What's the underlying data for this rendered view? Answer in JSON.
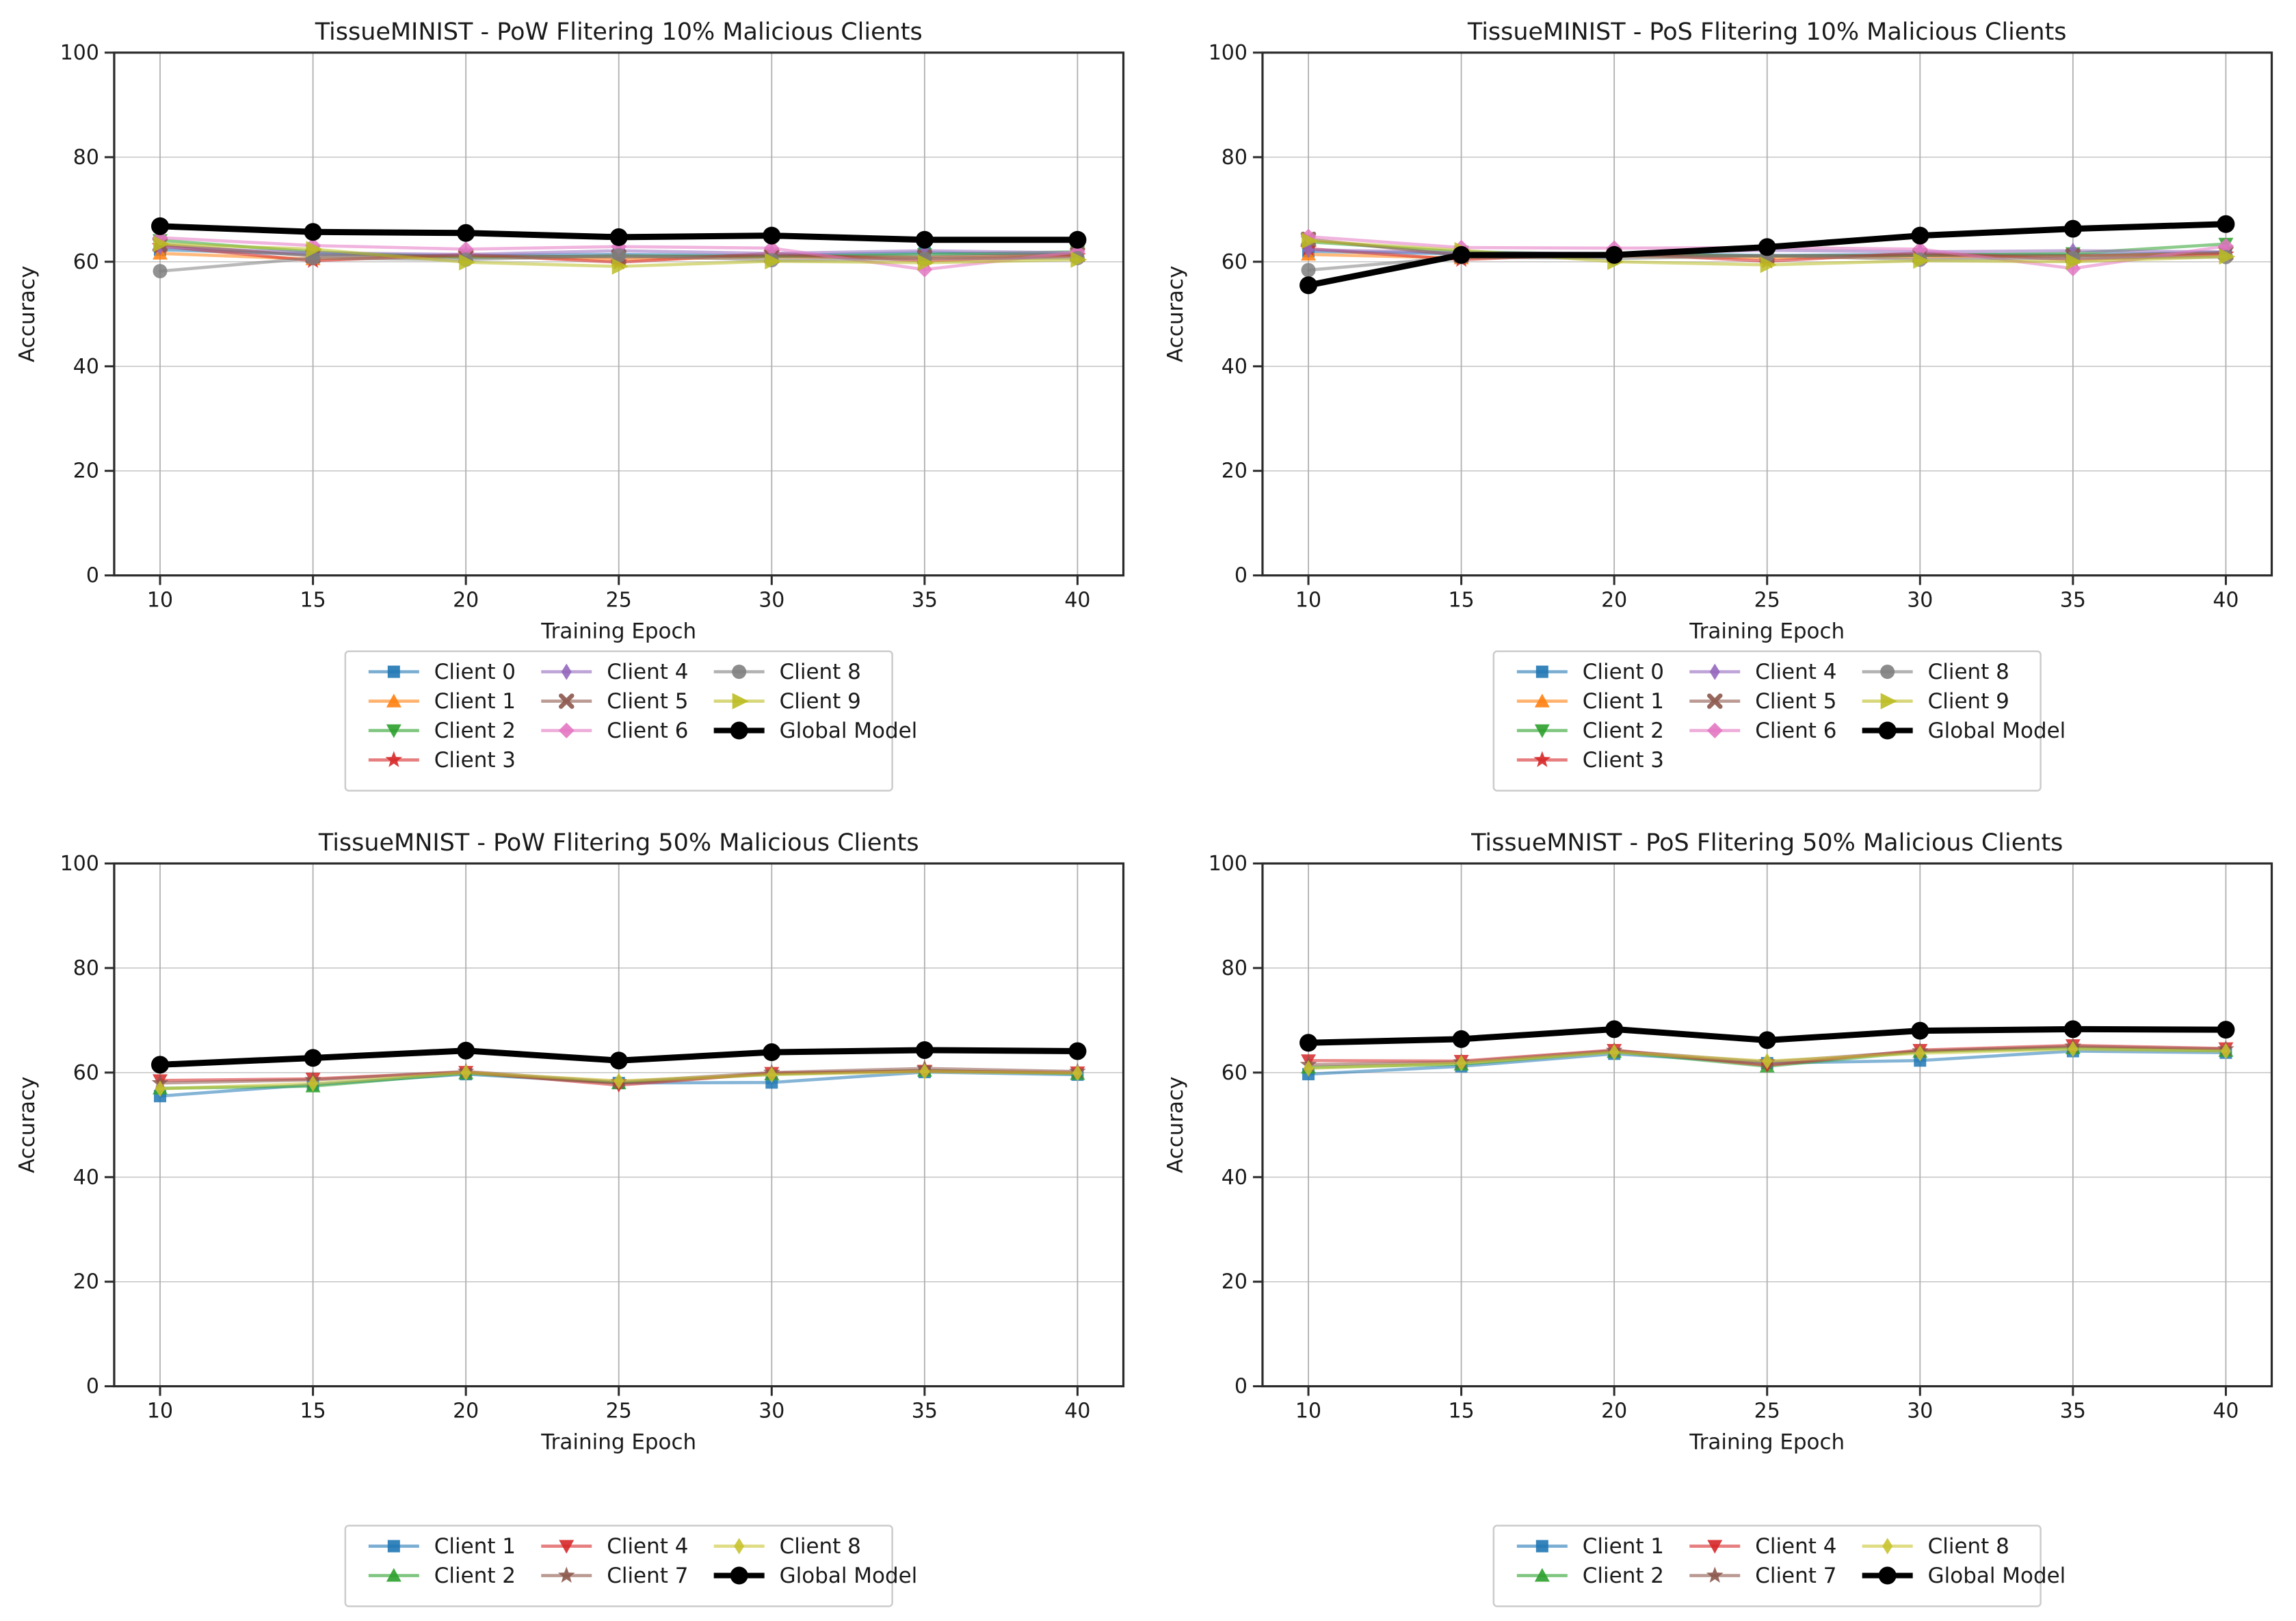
{
  "page": {
    "background": "#ffffff",
    "grid_color": "#b0b0b0",
    "spine_color": "#2b2b2b",
    "legend_border_color": "#cccccc"
  },
  "chart_data": [
    {
      "type": "line",
      "title": "TissueMINIST - PoW Flitering 10% Malicious Clients",
      "xlabel": "Training Epoch",
      "ylabel": "Accuracy",
      "x": [
        10,
        15,
        20,
        25,
        30,
        35,
        40
      ],
      "xticks": [
        10,
        15,
        20,
        25,
        30,
        35,
        40
      ],
      "yticks": [
        0,
        20,
        40,
        60,
        80,
        100
      ],
      "xlim": [
        8.5,
        41.5
      ],
      "ylim": [
        0,
        100
      ],
      "grid": true,
      "legend": {
        "position": "below-center",
        "ncol": 3,
        "border": true
      },
      "series": [
        {
          "name": "Client 0",
          "color": "#1f77b4",
          "marker": "square",
          "role": "client",
          "values": [
            62.3,
            61.4,
            61.2,
            61.4,
            61.2,
            61.7,
            61.4
          ]
        },
        {
          "name": "Client 1",
          "color": "#ff7f0e",
          "marker": "triangle_up",
          "role": "client",
          "values": [
            61.6,
            60.5,
            61.0,
            60.4,
            60.9,
            60.7,
            61.2
          ]
        },
        {
          "name": "Client 2",
          "color": "#2ca02c",
          "marker": "triangle_down",
          "role": "client",
          "values": [
            64.1,
            61.9,
            60.8,
            61.1,
            61.0,
            61.4,
            61.9
          ]
        },
        {
          "name": "Client 3",
          "color": "#d62728",
          "marker": "star",
          "role": "client",
          "values": [
            63.0,
            60.2,
            61.4,
            59.9,
            61.6,
            60.2,
            61.1
          ]
        },
        {
          "name": "Client 4",
          "color": "#9467bd",
          "marker": "thin_diamond",
          "role": "client",
          "values": [
            62.8,
            61.7,
            61.4,
            62.1,
            61.6,
            62.1,
            61.7
          ]
        },
        {
          "name": "Client 5",
          "color": "#8c564b",
          "marker": "x",
          "role": "client",
          "values": [
            63.3,
            61.1,
            61.1,
            60.9,
            61.1,
            60.9,
            61.4
          ]
        },
        {
          "name": "Client 6",
          "color": "#e377c2",
          "marker": "diamond",
          "role": "client",
          "values": [
            64.6,
            63.1,
            62.4,
            62.9,
            62.6,
            58.5,
            61.9
          ]
        },
        {
          "name": "Client 8",
          "color": "#7f7f7f",
          "marker": "circle",
          "role": "client",
          "values": [
            58.2,
            60.7,
            60.4,
            61.2,
            60.3,
            60.6,
            60.7
          ]
        },
        {
          "name": "Client 9",
          "color": "#bcbd22",
          "marker": "triangle_right",
          "role": "client",
          "values": [
            63.4,
            62.4,
            59.9,
            59.1,
            60.1,
            59.8,
            60.4
          ]
        },
        {
          "name": "Global Model",
          "color": "#000000",
          "marker": "circle",
          "role": "global",
          "values": [
            66.8,
            65.7,
            65.5,
            64.7,
            65.0,
            64.2,
            64.2
          ]
        }
      ]
    },
    {
      "type": "line",
      "title": "TissueMINIST - PoS Flitering 10% Malicious Clients",
      "xlabel": "Training Epoch",
      "ylabel": "Accuracy",
      "x": [
        10,
        15,
        20,
        25,
        30,
        35,
        40
      ],
      "xticks": [
        10,
        15,
        20,
        25,
        30,
        35,
        40
      ],
      "yticks": [
        0,
        20,
        40,
        60,
        80,
        100
      ],
      "xlim": [
        8.5,
        41.5
      ],
      "ylim": [
        0,
        100
      ],
      "grid": true,
      "legend": {
        "position": "below-center",
        "ncol": 3,
        "border": true
      },
      "series": [
        {
          "name": "Client 0",
          "color": "#1f77b4",
          "marker": "square",
          "role": "client",
          "values": [
            62.0,
            61.5,
            61.6,
            61.2,
            61.4,
            61.3,
            61.8
          ]
        },
        {
          "name": "Client 1",
          "color": "#ff7f0e",
          "marker": "triangle_up",
          "role": "client",
          "values": [
            61.4,
            60.7,
            61.1,
            60.7,
            60.9,
            61.1,
            61.6
          ]
        },
        {
          "name": "Client 2",
          "color": "#2ca02c",
          "marker": "triangle_down",
          "role": "client",
          "values": [
            63.8,
            61.9,
            61.4,
            61.1,
            61.2,
            61.6,
            63.4
          ]
        },
        {
          "name": "Client 3",
          "color": "#d62728",
          "marker": "star",
          "role": "client",
          "values": [
            62.5,
            60.4,
            61.6,
            60.1,
            61.7,
            60.4,
            61.4
          ]
        },
        {
          "name": "Client 4",
          "color": "#9467bd",
          "marker": "thin_diamond",
          "role": "client",
          "values": [
            62.3,
            61.7,
            61.6,
            62.2,
            61.9,
            62.1,
            61.9
          ]
        },
        {
          "name": "Client 5",
          "color": "#8c564b",
          "marker": "x",
          "role": "client",
          "values": [
            64.3,
            61.2,
            61.2,
            61.1,
            61.2,
            61.1,
            61.7
          ]
        },
        {
          "name": "Client 6",
          "color": "#e377c2",
          "marker": "diamond",
          "role": "client",
          "values": [
            64.8,
            62.7,
            62.6,
            62.7,
            62.4,
            58.7,
            63.0
          ]
        },
        {
          "name": "Client 8",
          "color": "#7f7f7f",
          "marker": "circle",
          "role": "client",
          "values": [
            58.4,
            60.9,
            60.6,
            61.2,
            60.4,
            60.7,
            60.9
          ]
        },
        {
          "name": "Client 9",
          "color": "#bcbd22",
          "marker": "triangle_right",
          "role": "client",
          "values": [
            64.0,
            62.2,
            60.0,
            59.4,
            60.2,
            60.0,
            61.0
          ]
        },
        {
          "name": "Global Model",
          "color": "#000000",
          "marker": "circle",
          "role": "global",
          "values": [
            55.5,
            61.3,
            61.3,
            62.8,
            65.0,
            66.3,
            67.2
          ]
        }
      ]
    },
    {
      "type": "line",
      "title": "TissueMNIST - PoW Flitering 50% Malicious Clients",
      "xlabel": "Training Epoch",
      "ylabel": "Accuracy",
      "x": [
        10,
        15,
        20,
        25,
        30,
        35,
        40
      ],
      "xticks": [
        10,
        15,
        20,
        25,
        30,
        35,
        40
      ],
      "yticks": [
        0,
        20,
        40,
        60,
        80,
        100
      ],
      "xlim": [
        8.5,
        41.5
      ],
      "ylim": [
        0,
        100
      ],
      "grid": true,
      "legend": {
        "position": "below-center",
        "ncol": 3,
        "border": true
      },
      "series": [
        {
          "name": "Client 1",
          "color": "#1f77b4",
          "marker": "square",
          "role": "client",
          "values": [
            55.5,
            57.7,
            59.7,
            58.0,
            58.1,
            60.1,
            59.6
          ]
        },
        {
          "name": "Client 2",
          "color": "#2ca02c",
          "marker": "triangle_up",
          "role": "client",
          "values": [
            57.0,
            57.4,
            59.9,
            58.0,
            59.7,
            60.4,
            59.8
          ]
        },
        {
          "name": "Client 4",
          "color": "#d62728",
          "marker": "triangle_down",
          "role": "client",
          "values": [
            58.5,
            58.8,
            60.1,
            57.6,
            59.9,
            60.3,
            60.0
          ]
        },
        {
          "name": "Client 7",
          "color": "#8c564b",
          "marker": "star",
          "role": "client",
          "values": [
            58.0,
            58.6,
            60.2,
            58.2,
            60.0,
            60.8,
            60.2
          ]
        },
        {
          "name": "Client 8",
          "color": "#c9c32f",
          "marker": "thin_diamond",
          "role": "client",
          "values": [
            56.9,
            57.9,
            60.0,
            58.4,
            59.6,
            60.2,
            59.9
          ]
        },
        {
          "name": "Global Model",
          "color": "#000000",
          "marker": "circle",
          "role": "global",
          "values": [
            61.5,
            62.8,
            64.2,
            62.3,
            63.9,
            64.3,
            64.1
          ]
        }
      ]
    },
    {
      "type": "line",
      "title": "TissueMNIST - PoS Flitering 50% Malicious Clients",
      "xlabel": "Training Epoch",
      "ylabel": "Accuracy",
      "x": [
        10,
        15,
        20,
        25,
        30,
        35,
        40
      ],
      "xticks": [
        10,
        15,
        20,
        25,
        30,
        35,
        40
      ],
      "yticks": [
        0,
        20,
        40,
        60,
        80,
        100
      ],
      "xlim": [
        8.5,
        41.5
      ],
      "ylim": [
        0,
        100
      ],
      "grid": true,
      "legend": {
        "position": "below-center",
        "ncol": 3,
        "border": true
      },
      "series": [
        {
          "name": "Client 1",
          "color": "#1f77b4",
          "marker": "square",
          "role": "client",
          "values": [
            59.7,
            61.2,
            63.6,
            61.8,
            62.3,
            64.1,
            63.8
          ]
        },
        {
          "name": "Client 2",
          "color": "#2ca02c",
          "marker": "triangle_up",
          "role": "client",
          "values": [
            61.0,
            61.6,
            64.0,
            61.2,
            64.0,
            64.7,
            64.2
          ]
        },
        {
          "name": "Client 4",
          "color": "#d62728",
          "marker": "triangle_down",
          "role": "client",
          "values": [
            62.3,
            62.2,
            64.3,
            61.4,
            64.3,
            65.2,
            64.6
          ]
        },
        {
          "name": "Client 7",
          "color": "#8c564b",
          "marker": "star",
          "role": "client",
          "values": [
            61.5,
            62.0,
            64.2,
            62.0,
            64.1,
            65.0,
            64.5
          ]
        },
        {
          "name": "Client 8",
          "color": "#c9c32f",
          "marker": "thin_diamond",
          "role": "client",
          "values": [
            60.8,
            61.8,
            63.9,
            62.2,
            63.7,
            64.5,
            64.1
          ]
        },
        {
          "name": "Global Model",
          "color": "#000000",
          "marker": "circle",
          "role": "global",
          "values": [
            65.7,
            66.4,
            68.3,
            66.2,
            68.0,
            68.3,
            68.2
          ]
        }
      ]
    }
  ]
}
